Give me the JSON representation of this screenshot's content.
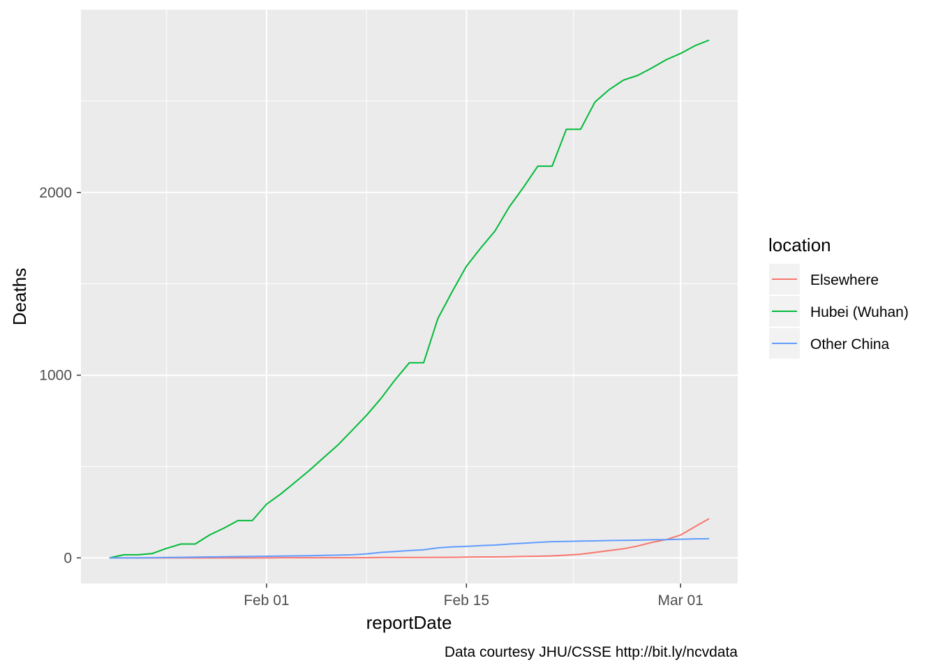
{
  "chart_data": {
    "type": "line",
    "xlabel": "reportDate",
    "ylabel": "Deaths",
    "caption": "Data courtesy JHU/CSSE http://bit.ly/ncvdata",
    "legend": {
      "title": "location",
      "placement": "right"
    },
    "grid": true,
    "x_ticks": [
      {
        "date": "2020-02-01",
        "label": "Feb 01"
      },
      {
        "date": "2020-02-15",
        "label": "Feb 15"
      },
      {
        "date": "2020-03-01",
        "label": "Mar 01"
      }
    ],
    "y_ticks": [
      0,
      1000,
      2000
    ],
    "xlim": [
      "2020-01-19",
      "2020-03-05"
    ],
    "ylim": [
      -140,
      3000
    ],
    "x": [
      "2020-01-21",
      "2020-01-22",
      "2020-01-23",
      "2020-01-24",
      "2020-01-25",
      "2020-01-26",
      "2020-01-27",
      "2020-01-28",
      "2020-01-29",
      "2020-01-30",
      "2020-01-31",
      "2020-02-01",
      "2020-02-02",
      "2020-02-03",
      "2020-02-04",
      "2020-02-05",
      "2020-02-06",
      "2020-02-07",
      "2020-02-08",
      "2020-02-09",
      "2020-02-10",
      "2020-02-11",
      "2020-02-12",
      "2020-02-13",
      "2020-02-14",
      "2020-02-15",
      "2020-02-16",
      "2020-02-17",
      "2020-02-18",
      "2020-02-19",
      "2020-02-20",
      "2020-02-21",
      "2020-02-22",
      "2020-02-23",
      "2020-02-24",
      "2020-02-25",
      "2020-02-26",
      "2020-02-27",
      "2020-02-28",
      "2020-02-29",
      "2020-03-01",
      "2020-03-02",
      "2020-03-03"
    ],
    "series": [
      {
        "name": "Elsewhere",
        "color": "#F8766D",
        "values": [
          0,
          0,
          0,
          0,
          0,
          0,
          0,
          0,
          0,
          0,
          0,
          0,
          1,
          1,
          1,
          1,
          1,
          1,
          1,
          2,
          2,
          2,
          2,
          3,
          3,
          4,
          5,
          5,
          6,
          8,
          9,
          11,
          15,
          20,
          30,
          40,
          50,
          65,
          85,
          100,
          125,
          170,
          215
        ]
      },
      {
        "name": "Hubei (Wuhan)",
        "color": "#00BA38",
        "values": [
          0,
          17,
          17,
          24,
          52,
          76,
          76,
          125,
          162,
          204,
          204,
          294,
          350,
          414,
          479,
          549,
          618,
          699,
          780,
          871,
          974,
          1068,
          1068,
          1310,
          1457,
          1596,
          1696,
          1789,
          1921,
          2029,
          2144,
          2144,
          2346,
          2346,
          2495,
          2563,
          2615,
          2641,
          2682,
          2727,
          2761,
          2803,
          2834
        ]
      },
      {
        "name": "Other China",
        "color": "#619CFF",
        "values": [
          0,
          0,
          0,
          1,
          2,
          3,
          4,
          5,
          6,
          7,
          8,
          9,
          10,
          11,
          12,
          14,
          15,
          17,
          22,
          30,
          35,
          40,
          44,
          55,
          60,
          63,
          67,
          70,
          76,
          80,
          85,
          89,
          90,
          92,
          93,
          95,
          96,
          97,
          99,
          100,
          102,
          104,
          105
        ]
      }
    ]
  }
}
